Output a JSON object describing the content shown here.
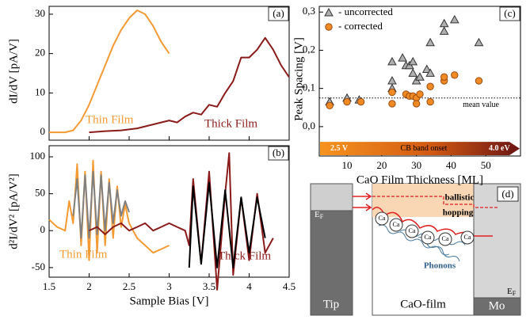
{
  "chart_data": [
    {
      "type": "line",
      "panel_label": "(a)",
      "ylabel": "dI/dV [pA/V]",
      "xlim": [
        1.5,
        4.5
      ],
      "ylim": [
        -2,
        32
      ],
      "yticks": [
        0,
        10,
        20,
        30
      ],
      "annotations": [
        {
          "text": "Thin Film",
          "color": "#f39a33"
        },
        {
          "text": "Thick Film",
          "color": "#8b1a1a"
        }
      ],
      "series": [
        {
          "color": "#f39a33",
          "x": [
            1.5,
            1.6,
            1.7,
            1.8,
            1.9,
            2.0,
            2.1,
            2.2,
            2.3,
            2.4,
            2.5,
            2.6,
            2.7,
            2.8,
            2.9,
            3.0
          ],
          "values": [
            0,
            0,
            0,
            0.5,
            3,
            7,
            12,
            17,
            22,
            26,
            29,
            31,
            30,
            27,
            23,
            20
          ]
        },
        {
          "color": "#8b1a1a",
          "x": [
            2.0,
            2.2,
            2.4,
            2.6,
            2.8,
            3.0,
            3.1,
            3.2,
            3.3,
            3.4,
            3.5,
            3.6,
            3.7,
            3.8,
            3.9,
            4.0,
            4.1,
            4.2,
            4.3,
            4.4,
            4.5
          ],
          "values": [
            0,
            0.3,
            0.5,
            1,
            2,
            3,
            2.5,
            4,
            5,
            4.5,
            7,
            6.5,
            10,
            13,
            19,
            19,
            21,
            24,
            21,
            17,
            14
          ]
        }
      ]
    },
    {
      "type": "line",
      "panel_label": "(b)",
      "ylabel": "d²I/dV² [pA/V²]",
      "xlabel": "Sample Bias [V]",
      "xlim": [
        1.5,
        4.5
      ],
      "ylim": [
        -63,
        115
      ],
      "xticks": [
        1.5,
        2.0,
        2.5,
        3.0,
        3.5,
        4.0,
        4.5
      ],
      "yticks": [
        -50,
        0,
        50,
        100
      ],
      "annotations": [
        {
          "text": "Thin Film",
          "color": "#f39a33"
        },
        {
          "text": "Thick Film",
          "color": "#8b1a1a"
        }
      ],
      "series": [
        {
          "color": "#f39a33",
          "x": [
            1.5,
            1.6,
            1.7,
            1.75,
            1.8,
            1.85,
            1.9,
            1.95,
            2.0,
            2.05,
            2.1,
            2.15,
            2.2,
            2.25,
            2.3,
            2.35,
            2.4,
            2.45,
            2.5,
            2.6,
            2.7,
            2.8,
            2.9,
            3.0
          ],
          "values": [
            15,
            5,
            0,
            40,
            10,
            90,
            -20,
            80,
            -40,
            95,
            -30,
            80,
            -20,
            70,
            -10,
            60,
            5,
            35,
            10,
            -10,
            -20,
            -30,
            -25,
            -20
          ]
        },
        {
          "color": "#808080",
          "x": [
            1.8,
            1.85,
            1.9,
            1.95,
            2.0,
            2.05,
            2.1,
            2.15,
            2.2,
            2.25,
            2.3,
            2.35,
            2.4,
            2.45,
            2.5
          ],
          "values": [
            20,
            70,
            -10,
            75,
            -10,
            80,
            -5,
            75,
            0,
            65,
            10,
            55,
            20,
            40,
            25
          ]
        },
        {
          "color": "#8b1a1a",
          "x": [
            2.0,
            2.1,
            2.2,
            2.3,
            2.4,
            2.5,
            2.6,
            2.7,
            2.8,
            2.9,
            3.0,
            3.1,
            3.2,
            3.25,
            3.3,
            3.4,
            3.5,
            3.6,
            3.7,
            3.75,
            3.8,
            3.9,
            4.0,
            4.1,
            4.2,
            4.3
          ],
          "values": [
            0,
            5,
            -5,
            5,
            10,
            0,
            5,
            10,
            0,
            5,
            10,
            5,
            0,
            -20,
            70,
            -45,
            80,
            -80,
            50,
            105,
            -60,
            45,
            -40,
            50,
            -30,
            -10
          ]
        },
        {
          "color": "#000000",
          "x": [
            3.25,
            3.3,
            3.4,
            3.5,
            3.6,
            3.7,
            3.8,
            3.9,
            4.0,
            4.1,
            4.2
          ],
          "values": [
            -50,
            60,
            -45,
            65,
            -50,
            55,
            -50,
            45,
            -30,
            45,
            -10
          ]
        }
      ]
    },
    {
      "type": "scatter",
      "panel_label": "(c)",
      "ylabel": "Peak Spacing [V]",
      "xlabel": "CaO Film Thickness [ML]",
      "xlim": [
        2,
        60
      ],
      "ylim": [
        -0.077,
        0.315
      ],
      "xticks": [
        10,
        20,
        30,
        40,
        50
      ],
      "yticks": [
        {
          "value": 0,
          "label": "0,0"
        },
        {
          "value": 0.1,
          "label": "0,1"
        },
        {
          "value": 0.2,
          "label": "0,2"
        },
        {
          "value": 0.3,
          "label": "0,3"
        }
      ],
      "mean_value": 0.075,
      "mean_label": "mean value",
      "bar_labels": [
        "2.5 V",
        "CB band onset",
        "4.0 eV"
      ],
      "series": [
        {
          "name": "- uncorrected",
          "marker": "triangle",
          "color": "#b0b0b0",
          "x": [
            5,
            10,
            13.5,
            23,
            23,
            23,
            26,
            27,
            28,
            29,
            29,
            30,
            31,
            33,
            34,
            34,
            38,
            38,
            41,
            48
          ],
          "values": [
            0.065,
            0.075,
            0.07,
            0.17,
            0.12,
            0.1,
            0.18,
            0.16,
            0.16,
            0.14,
            0.17,
            0.12,
            0.13,
            0.15,
            0.22,
            0.14,
            0.25,
            0.27,
            0.28,
            0.22
          ]
        },
        {
          "name": "- corrected",
          "marker": "circle",
          "color": "#f08a24",
          "x": [
            5,
            10,
            14,
            23,
            23,
            27,
            28,
            29,
            30,
            30,
            31,
            34,
            34,
            38,
            38,
            41,
            48
          ],
          "values": [
            0.055,
            0.065,
            0.065,
            0.09,
            0.06,
            0.085,
            0.08,
            0.08,
            0.075,
            0.06,
            0.085,
            0.065,
            0.105,
            0.12,
            0.13,
            0.135,
            0.12
          ]
        }
      ]
    }
  ],
  "diagram": {
    "panel_label": "(d)",
    "tip_fermi": {
      "main": "E",
      "sub": "F"
    },
    "mo_fermi": {
      "main": "E",
      "sub": "F"
    },
    "ballistic": "ballistic",
    "hopping": "hopping",
    "ion_label": "Ca",
    "phonons": "Phonons",
    "tip": "Tip",
    "film": "CaO-film",
    "mo": "Mo"
  }
}
